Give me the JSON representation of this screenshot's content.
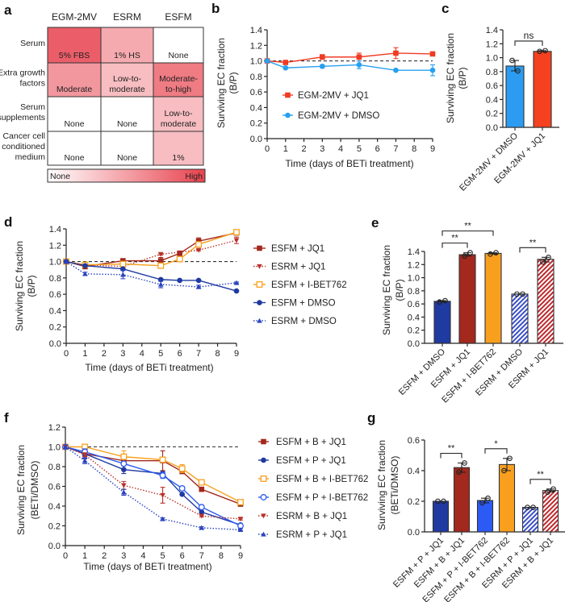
{
  "panel_letters": [
    "a",
    "b",
    "c",
    "d",
    "e",
    "f",
    "g"
  ],
  "chart_data": [
    {
      "panel": "a",
      "type": "heatmap",
      "columns": [
        "EGM-2MV",
        "ESRM",
        "ESFM"
      ],
      "rows": [
        [
          "Serum"
        ],
        [
          "Extra growth",
          "factors"
        ],
        [
          "Serum",
          "supplements"
        ],
        [
          "Cancer cell",
          "conditioned",
          "medium"
        ]
      ],
      "cells": [
        [
          {
            "text": [
              "5% FBS"
            ],
            "level": 0.85
          },
          {
            "text": [
              "1% HS"
            ],
            "level": 0.45
          },
          {
            "text": [
              "None"
            ],
            "level": 0
          }
        ],
        [
          {
            "text": [
              "Moderate"
            ],
            "level": 0.55
          },
          {
            "text": [
              "Low-to-",
              "moderate"
            ],
            "level": 0.35
          },
          {
            "text": [
              "Moderate-",
              "to-high"
            ],
            "level": 0.7
          }
        ],
        [
          {
            "text": [
              "None"
            ],
            "level": 0
          },
          {
            "text": [
              "None"
            ],
            "level": 0
          },
          {
            "text": [
              "Low-to-",
              "moderate"
            ],
            "level": 0.35
          }
        ],
        [
          {
            "text": [
              "None"
            ],
            "level": 0
          },
          {
            "text": [
              "None"
            ],
            "level": 0
          },
          {
            "text": [
              "1%"
            ],
            "level": 0.35
          }
        ]
      ],
      "colorbar": {
        "low": "None",
        "high": "High",
        "low_color": "#ffffff",
        "high_color": "#e8424e"
      }
    },
    {
      "panel": "b",
      "type": "line",
      "ylabel": [
        "Surviving EC fraction",
        "(B/P)"
      ],
      "xlabel": "Time (days of BETi treatment)",
      "xlim": [
        0,
        9
      ],
      "ylim": [
        0,
        1.4
      ],
      "xticks": [
        "0",
        "1",
        "2",
        "3",
        "4",
        "5",
        "6",
        "7",
        "8",
        "9"
      ],
      "yticks": [
        "0.0",
        "0.2",
        "0.4",
        "0.6",
        "0.8",
        "1.0",
        "1.2",
        "1.4"
      ],
      "reference_line": 1.0,
      "legend_position": "inside-left",
      "series": [
        {
          "name": "EGM-2MV + JQ1",
          "color": "#f03b23",
          "marker": "square",
          "line": "solid",
          "x": [
            0,
            1,
            3,
            5,
            7,
            9
          ],
          "y": [
            1.0,
            0.98,
            1.05,
            1.05,
            1.1,
            1.09
          ],
          "err": [
            0,
            0.01,
            0.03,
            0.05,
            0.07,
            0.01
          ]
        },
        {
          "name": "EGM-2MV + DMSO",
          "color": "#27a0f0",
          "marker": "circle",
          "line": "solid",
          "x": [
            0,
            1,
            3,
            5,
            7,
            9
          ],
          "y": [
            1.0,
            0.91,
            0.93,
            0.95,
            0.88,
            0.88
          ],
          "err": [
            0,
            0.01,
            0.02,
            0.05,
            0.01,
            0.07
          ]
        }
      ]
    },
    {
      "panel": "c",
      "type": "bar",
      "ylabel": [
        "Surviving EC fraction",
        "(B/P)"
      ],
      "ylim": [
        0,
        1.4
      ],
      "yticks": [
        "0.0",
        "0.2",
        "0.4",
        "0.6",
        "0.8",
        "1.0",
        "1.2",
        "1.4"
      ],
      "categories": [
        "EGM-2MV + DMSO",
        "EGM-2MV + JQ1"
      ],
      "values": [
        0.88,
        1.09
      ],
      "points": [
        [
          0.96,
          0.81
        ],
        [
          1.09,
          1.1
        ]
      ],
      "colors": [
        "#2b9cf2",
        "#f5411f"
      ],
      "hatched": [
        false,
        false
      ],
      "significance": [
        {
          "from": 0,
          "to": 1,
          "label": "ns",
          "level": 0
        }
      ]
    },
    {
      "panel": "d",
      "type": "line",
      "ylabel": [
        "Surviving EC fraction",
        "(B/P)"
      ],
      "xlabel": "Time (days of BETi treatment)",
      "xlim": [
        0,
        9
      ],
      "ylim": [
        0,
        1.4
      ],
      "xticks": [
        "0",
        "1",
        "2",
        "3",
        "4",
        "5",
        "6",
        "7",
        "8",
        "9"
      ],
      "yticks": [
        "0.0",
        "0.2",
        "0.4",
        "0.6",
        "0.8",
        "1.0",
        "1.2",
        "1.4"
      ],
      "reference_line": 1.0,
      "legend_position": "right",
      "series": [
        {
          "name": "ESFM + JQ1",
          "color": "#a3281e",
          "marker": "square",
          "line": "solid",
          "x": [
            0,
            1,
            3,
            5,
            6,
            7,
            9
          ],
          "y": [
            1.0,
            0.94,
            1.01,
            1.01,
            1.1,
            1.25,
            1.35
          ],
          "err": [
            0,
            0.03,
            0.01,
            0.04,
            0.03,
            0.04,
            0.02
          ]
        },
        {
          "name": "ESRM + JQ1",
          "color": "#b8322a",
          "marker": "triangle-down",
          "line": "dotted",
          "x": [
            0,
            1,
            3,
            5,
            7,
            9
          ],
          "y": [
            1.0,
            0.96,
            0.94,
            1.09,
            1.14,
            1.26
          ],
          "err": [
            0,
            0.02,
            0.02,
            0.01,
            0.01,
            0.04
          ]
        },
        {
          "name": "ESFM + I-BET762",
          "color": "#f8a01e",
          "marker": "open-square",
          "line": "solid",
          "x": [
            0,
            1,
            3,
            5,
            6,
            7,
            9
          ],
          "y": [
            1.0,
            0.96,
            0.97,
            0.95,
            1.03,
            1.21,
            1.36
          ],
          "err": [
            0,
            0.02,
            0.02,
            0.03,
            0.02,
            0.03,
            0.01
          ]
        },
        {
          "name": "ESFM + DMSO",
          "color": "#1f3aa0",
          "marker": "circle",
          "line": "solid",
          "x": [
            0,
            1,
            3,
            5,
            6,
            7,
            9
          ],
          "y": [
            1.0,
            0.95,
            0.91,
            0.78,
            0.77,
            0.77,
            0.64
          ],
          "err": [
            0,
            0.01,
            0.01,
            0.01,
            0.01,
            0.01,
            0.01
          ]
        },
        {
          "name": "ESRM + DMSO",
          "color": "#2a43c0",
          "marker": "triangle-up",
          "line": "dotted",
          "x": [
            0,
            1,
            3,
            5,
            7,
            9
          ],
          "y": [
            1.0,
            0.85,
            0.84,
            0.72,
            0.69,
            0.74
          ],
          "err": [
            0,
            0.02,
            0.05,
            0.04,
            0.02,
            0.01
          ]
        }
      ]
    },
    {
      "panel": "e",
      "type": "bar",
      "ylabel": [
        "Surviving EC fraction",
        "(B/P)"
      ],
      "ylim": [
        0,
        1.4
      ],
      "yticks": [
        "0.0",
        "0.2",
        "0.4",
        "0.6",
        "0.8",
        "1.0",
        "1.2",
        "1.4"
      ],
      "categories": [
        "ESFM + DMSO",
        "ESFM + JQ1",
        "ESFM + I-BET762",
        "ESRM + DMSO",
        "ESRM + JQ1"
      ],
      "values": [
        0.64,
        1.35,
        1.37,
        0.75,
        1.28
      ],
      "points": [
        [
          0.63,
          0.65
        ],
        [
          1.33,
          1.38
        ],
        [
          1.36,
          1.38
        ],
        [
          0.75,
          0.75
        ],
        [
          1.24,
          1.31
        ]
      ],
      "colors": [
        "#1f3aa0",
        "#a3281e",
        "#f8a01e",
        "#3a4fc8",
        "#c0282c"
      ],
      "hatched": [
        false,
        false,
        false,
        true,
        true
      ],
      "significance": [
        {
          "from": 0,
          "to": 1,
          "label": "**",
          "level": 0
        },
        {
          "from": 0,
          "to": 2,
          "label": "**",
          "level": 1
        },
        {
          "from": 3,
          "to": 4,
          "label": "**",
          "level": 0
        }
      ]
    },
    {
      "panel": "f",
      "type": "line",
      "ylabel": [
        "Surviving EC fraction",
        "(BETi/DMSO)"
      ],
      "xlabel": "Time (days of BETi treatment)",
      "xlim": [
        0,
        9
      ],
      "ylim": [
        0,
        1.2
      ],
      "xticks": [
        "0",
        "1",
        "2",
        "3",
        "4",
        "5",
        "6",
        "7",
        "8",
        "9"
      ],
      "yticks": [
        "0.0",
        "0.2",
        "0.4",
        "0.6",
        "0.8",
        "1.0",
        "1.2"
      ],
      "reference_line": 1.0,
      "legend_position": "right",
      "series": [
        {
          "name": "ESFM + B + JQ1",
          "color": "#a3281e",
          "marker": "square",
          "line": "solid",
          "x": [
            0,
            1,
            3,
            5,
            6,
            7,
            9
          ],
          "y": [
            1.0,
            0.93,
            0.86,
            0.86,
            0.75,
            0.57,
            0.42
          ],
          "err": [
            0,
            0.05,
            0.04,
            0.1,
            0.02,
            0.01,
            0.02
          ]
        },
        {
          "name": "ESFM + P + JQ1",
          "color": "#1f3aa0",
          "marker": "circle",
          "line": "solid",
          "x": [
            0,
            1,
            3,
            5,
            6,
            7,
            9
          ],
          "y": [
            1.0,
            0.93,
            0.77,
            0.73,
            0.52,
            0.34,
            0.21
          ],
          "err": [
            0,
            0.05,
            0.04,
            0.02,
            0.01,
            0.01,
            0.01
          ]
        },
        {
          "name": "ESFM + B + I-BET762",
          "color": "#f8a01e",
          "marker": "open-square",
          "line": "solid",
          "x": [
            0,
            1,
            3,
            5,
            6,
            7,
            9
          ],
          "y": [
            1.0,
            1.0,
            0.9,
            0.87,
            0.78,
            0.64,
            0.44
          ],
          "err": [
            0,
            0.02,
            0.06,
            0.02,
            0.04,
            0.02,
            0.02
          ]
        },
        {
          "name": "ESFM + P + I-BET762",
          "color": "#2b5af5",
          "marker": "open-circle",
          "line": "solid",
          "x": [
            0,
            1,
            3,
            5,
            6,
            7,
            9
          ],
          "y": [
            1.0,
            0.95,
            0.83,
            0.71,
            0.58,
            0.39,
            0.2
          ],
          "err": [
            0,
            0.03,
            0.02,
            0.03,
            0.02,
            0.01,
            0.01
          ]
        },
        {
          "name": "ESRM + B + JQ1",
          "color": "#b8322a",
          "marker": "triangle-down",
          "line": "dotted",
          "x": [
            0,
            1,
            3,
            5,
            7,
            9
          ],
          "y": [
            1.0,
            0.92,
            0.61,
            0.51,
            0.3,
            0.27
          ],
          "err": [
            0,
            0.02,
            0.04,
            0.08,
            0.01,
            0.01
          ]
        },
        {
          "name": "ESRM + P + JQ1",
          "color": "#2a43c0",
          "marker": "triangle-up",
          "line": "dotted",
          "x": [
            0,
            1,
            3,
            5,
            7,
            9
          ],
          "y": [
            1.0,
            0.86,
            0.54,
            0.27,
            0.18,
            0.16
          ],
          "err": [
            0,
            0.03,
            0.03,
            0.01,
            0.01,
            0.01
          ]
        }
      ]
    },
    {
      "panel": "g",
      "type": "bar",
      "ylabel": [
        "Surviving EC fraction",
        "(BETi/DMSO)"
      ],
      "ylim": [
        0,
        0.6
      ],
      "yticks": [
        "0.0",
        "0.2",
        "0.4",
        "0.6"
      ],
      "categories": [
        "ESFM + P + JQ1",
        "ESFM + B + JQ1",
        "ESFM + P + I-BET762",
        "ESFM + B + I-BET762",
        "ESRM + P + JQ1",
        "ESRM + B + JQ1"
      ],
      "values": [
        0.2,
        0.42,
        0.205,
        0.44,
        0.16,
        0.27
      ],
      "points": [
        [
          0.2,
          0.2
        ],
        [
          0.39,
          0.45
        ],
        [
          0.19,
          0.22
        ],
        [
          0.4,
          0.48
        ],
        [
          0.16,
          0.16
        ],
        [
          0.26,
          0.28
        ]
      ],
      "colors": [
        "#1f3aa0",
        "#a3281e",
        "#2b5af5",
        "#f8a01e",
        "#3a4fc8",
        "#c0282c"
      ],
      "hatched": [
        false,
        false,
        false,
        false,
        true,
        true
      ],
      "significance": [
        {
          "from": 0,
          "to": 1,
          "label": "**",
          "level": 0
        },
        {
          "from": 2,
          "to": 3,
          "label": "*",
          "level": 0
        },
        {
          "from": 4,
          "to": 5,
          "label": "**",
          "level": 0
        }
      ]
    }
  ]
}
